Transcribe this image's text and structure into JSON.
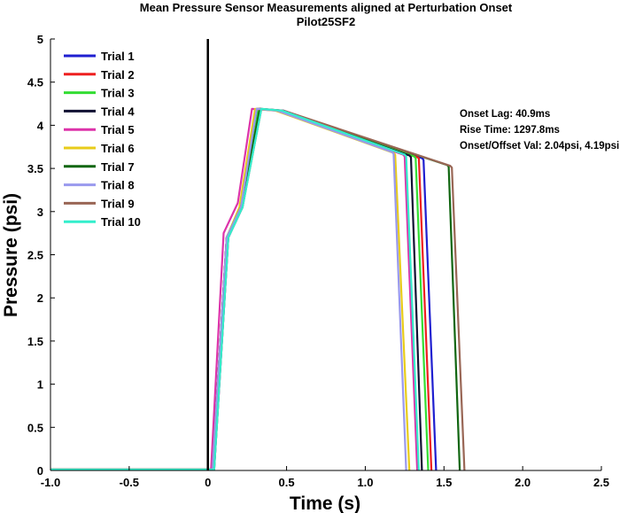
{
  "chart_data": {
    "type": "line",
    "title": "Mean Pressure Sensor Measurements aligned at Perturbation Onset",
    "subtitle": "Pilot25SF2",
    "xlabel": "Time (s)",
    "ylabel": "Pressure (psi)",
    "xlim": [
      -1.0,
      2.5
    ],
    "ylim": [
      0,
      5
    ],
    "x_ticks": [
      "-1.0",
      "-0.5",
      "0",
      "0.5",
      "1.0",
      "1.5",
      "2.0",
      "2.5"
    ],
    "y_ticks": [
      "0",
      "0.5",
      "1",
      "1.5",
      "2",
      "2.5",
      "3",
      "3.5",
      "4",
      "4.5",
      "5"
    ],
    "grid": false,
    "legend_position": "top-left",
    "onset_line_x": 0,
    "annotations": [
      "Onset Lag: 40.9ms",
      "Rise Time: 1297.8ms",
      "Onset/Offset Val: 2.04psi, 4.19psi"
    ],
    "series": [
      {
        "name": "Trial 1",
        "color": "#1f1fd0",
        "x": [
          -1.0,
          0.04,
          0.13,
          0.22,
          0.33,
          0.48,
          1.36,
          1.37,
          1.45
        ],
        "y": [
          0.01,
          0.01,
          2.7,
          3.05,
          4.19,
          4.17,
          3.62,
          3.6,
          0.0
        ]
      },
      {
        "name": "Trial 2",
        "color": "#ee1f1f",
        "x": [
          -1.0,
          0.03,
          0.12,
          0.21,
          0.32,
          0.46,
          1.33,
          1.34,
          1.42
        ],
        "y": [
          0.01,
          0.01,
          2.7,
          3.05,
          4.19,
          4.17,
          3.63,
          3.62,
          0.0
        ]
      },
      {
        "name": "Trial 3",
        "color": "#33dd33",
        "x": [
          -1.0,
          0.03,
          0.12,
          0.21,
          0.32,
          0.45,
          1.31,
          1.32,
          1.4
        ],
        "y": [
          0.01,
          0.01,
          2.7,
          3.05,
          4.19,
          4.17,
          3.64,
          3.62,
          0.0
        ]
      },
      {
        "name": "Trial 4",
        "color": "#111133",
        "x": [
          -1.0,
          0.03,
          0.12,
          0.21,
          0.31,
          0.45,
          1.28,
          1.29,
          1.36
        ],
        "y": [
          0.01,
          0.01,
          2.7,
          3.05,
          4.19,
          4.17,
          3.65,
          3.63,
          0.0
        ]
      },
      {
        "name": "Trial 5",
        "color": "#dd33aa",
        "x": [
          -1.0,
          0.02,
          0.1,
          0.19,
          0.28,
          0.43,
          1.24,
          1.25,
          1.33
        ],
        "y": [
          0.01,
          0.01,
          2.75,
          3.1,
          4.19,
          4.17,
          3.66,
          3.64,
          0.0
        ]
      },
      {
        "name": "Trial 6",
        "color": "#e8cc1a",
        "x": [
          -1.0,
          0.03,
          0.12,
          0.2,
          0.3,
          0.43,
          1.18,
          1.19,
          1.28
        ],
        "y": [
          0.01,
          0.01,
          2.7,
          3.05,
          4.19,
          4.17,
          3.68,
          3.66,
          0.0
        ]
      },
      {
        "name": "Trial 7",
        "color": "#116611",
        "x": [
          -1.0,
          0.03,
          0.12,
          0.21,
          0.33,
          0.47,
          1.52,
          1.53,
          1.6
        ],
        "y": [
          0.01,
          0.01,
          2.7,
          3.05,
          4.19,
          4.17,
          3.54,
          3.52,
          0.0
        ]
      },
      {
        "name": "Trial 8",
        "color": "#9999ee",
        "x": [
          -1.0,
          0.03,
          0.12,
          0.21,
          0.31,
          0.44,
          1.17,
          1.18,
          1.26
        ],
        "y": [
          0.01,
          0.01,
          2.7,
          3.05,
          4.19,
          4.17,
          3.69,
          3.67,
          0.0
        ]
      },
      {
        "name": "Trial 9",
        "color": "#996655",
        "x": [
          -1.0,
          0.04,
          0.13,
          0.22,
          0.34,
          0.48,
          1.54,
          1.55,
          1.63
        ],
        "y": [
          0.01,
          0.01,
          2.7,
          3.05,
          4.19,
          4.17,
          3.53,
          3.51,
          0.0
        ]
      },
      {
        "name": "Trial 10",
        "color": "#33eecc",
        "x": [
          -1.0,
          0.04,
          0.13,
          0.22,
          0.34,
          0.47,
          1.25,
          1.26,
          1.34
        ],
        "y": [
          0.01,
          0.01,
          2.7,
          3.05,
          4.19,
          4.17,
          3.66,
          3.64,
          0.0
        ]
      }
    ]
  }
}
